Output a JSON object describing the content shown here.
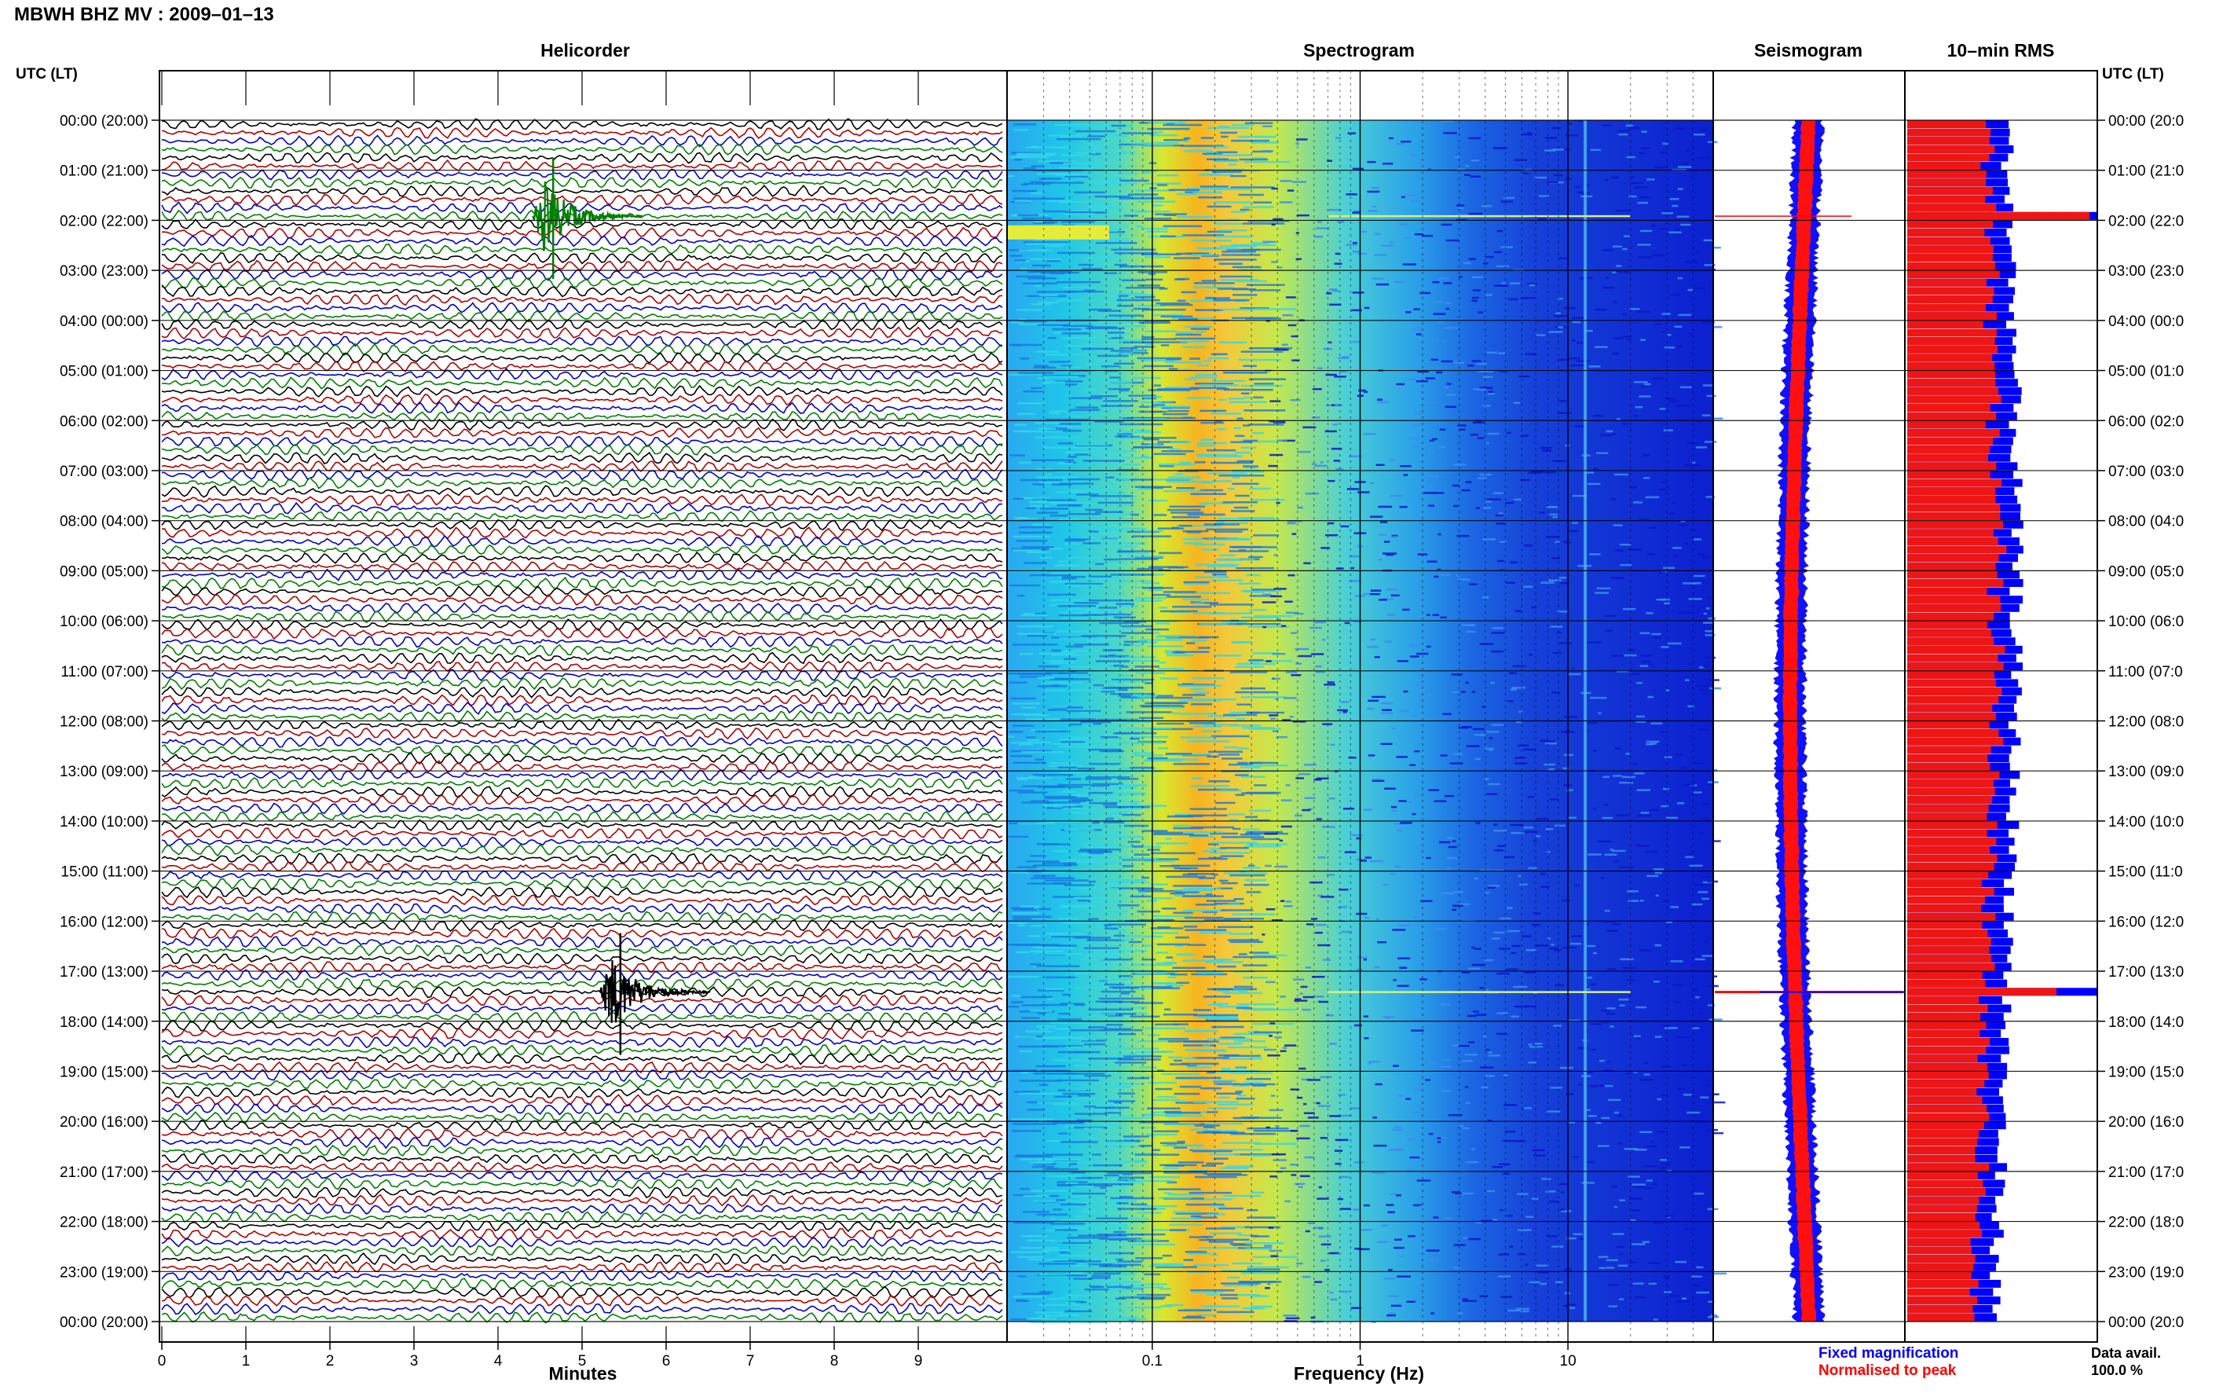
{
  "title": "MBWH BHZ MV : 2009–01–13",
  "panels": {
    "helicorder": "Helicorder",
    "spectrogram": "Spectrogram",
    "seismogram": "Seismogram",
    "rms": "10–min RMS"
  },
  "time_axis_label": "UTC (LT)",
  "time_ticks": [
    "00:00 (20:00)",
    "01:00 (21:00)",
    "02:00 (22:00)",
    "03:00 (23:00)",
    "04:00 (00:00)",
    "05:00 (01:00)",
    "06:00 (02:00)",
    "07:00 (03:00)",
    "08:00 (04:00)",
    "09:00 (05:00)",
    "10:00 (06:00)",
    "11:00 (07:00)",
    "12:00 (08:00)",
    "13:00 (09:00)",
    "14:00 (10:00)",
    "15:00 (11:00)",
    "16:00 (12:00)",
    "17:00 (13:00)",
    "18:00 (14:00)",
    "19:00 (15:00)",
    "20:00 (16:00)",
    "21:00 (17:00)",
    "22:00 (18:00)",
    "23:00 (19:00)",
    "00:00 (20:00)"
  ],
  "right_ticks": [
    "00:00 (20:0",
    "01:00 (21:0",
    "02:00 (22:0",
    "03:00 (23:0",
    "04:00 (00:0",
    "05:00 (01:0",
    "06:00 (02:0",
    "07:00 (03:0",
    "08:00 (04:0",
    "09:00 (05:0",
    "10:00 (06:0",
    "11:00 (07:0",
    "12:00 (08:0",
    "13:00 (09:0",
    "14:00 (10:0",
    "15:00 (11:0",
    "16:00 (12:0",
    "17:00 (13:0",
    "18:00 (14:0",
    "19:00 (15:0",
    "20:00 (16:0",
    "21:00 (17:0",
    "22:00 (18:0",
    "23:00 (19:0",
    "00:00 (20:0"
  ],
  "chart_data": [
    {
      "type": "line",
      "name": "helicorder",
      "title": "Helicorder",
      "xlabel": "Minutes",
      "x_ticks": [
        "0",
        "1",
        "2",
        "3",
        "4",
        "5",
        "6",
        "7",
        "8",
        "9"
      ],
      "xlim": [
        0,
        10
      ],
      "lines_per_hour": 6,
      "trace_colors": [
        "#000000",
        "#b00000",
        "#0000c8",
        "#008000"
      ],
      "events": [
        {
          "time_utc": "01:50",
          "minute": 4.6,
          "color": "#008000"
        },
        {
          "time_utc": "17:20",
          "minute": 5.4,
          "color": "#000000"
        }
      ]
    },
    {
      "type": "heatmap",
      "name": "spectrogram",
      "title": "Spectrogram",
      "xlabel": "Frequency (Hz)",
      "x_ticks": [
        "0.1",
        "1",
        "10"
      ],
      "xscale": "log",
      "xlim": [
        0.02,
        50
      ],
      "peak_band_hz": [
        0.2,
        0.35
      ],
      "line_hz": 10
    },
    {
      "type": "line",
      "name": "seismogram",
      "title": "Seismogram",
      "legend": [
        "Fixed magnification",
        "Normalised to peak"
      ],
      "legend_colors": [
        "#0000ff",
        "#ff0000"
      ],
      "spike_times_utc": [
        "01:55",
        "17:25"
      ]
    },
    {
      "type": "bar",
      "name": "rms",
      "title": "10–min RMS",
      "legend_colors": [
        "#0000ff",
        "#ff0000"
      ],
      "spike_times_utc": [
        "01:55",
        "17:25"
      ],
      "data_avail_label": "Data avail.",
      "data_avail_value": "100.0 %"
    }
  ]
}
